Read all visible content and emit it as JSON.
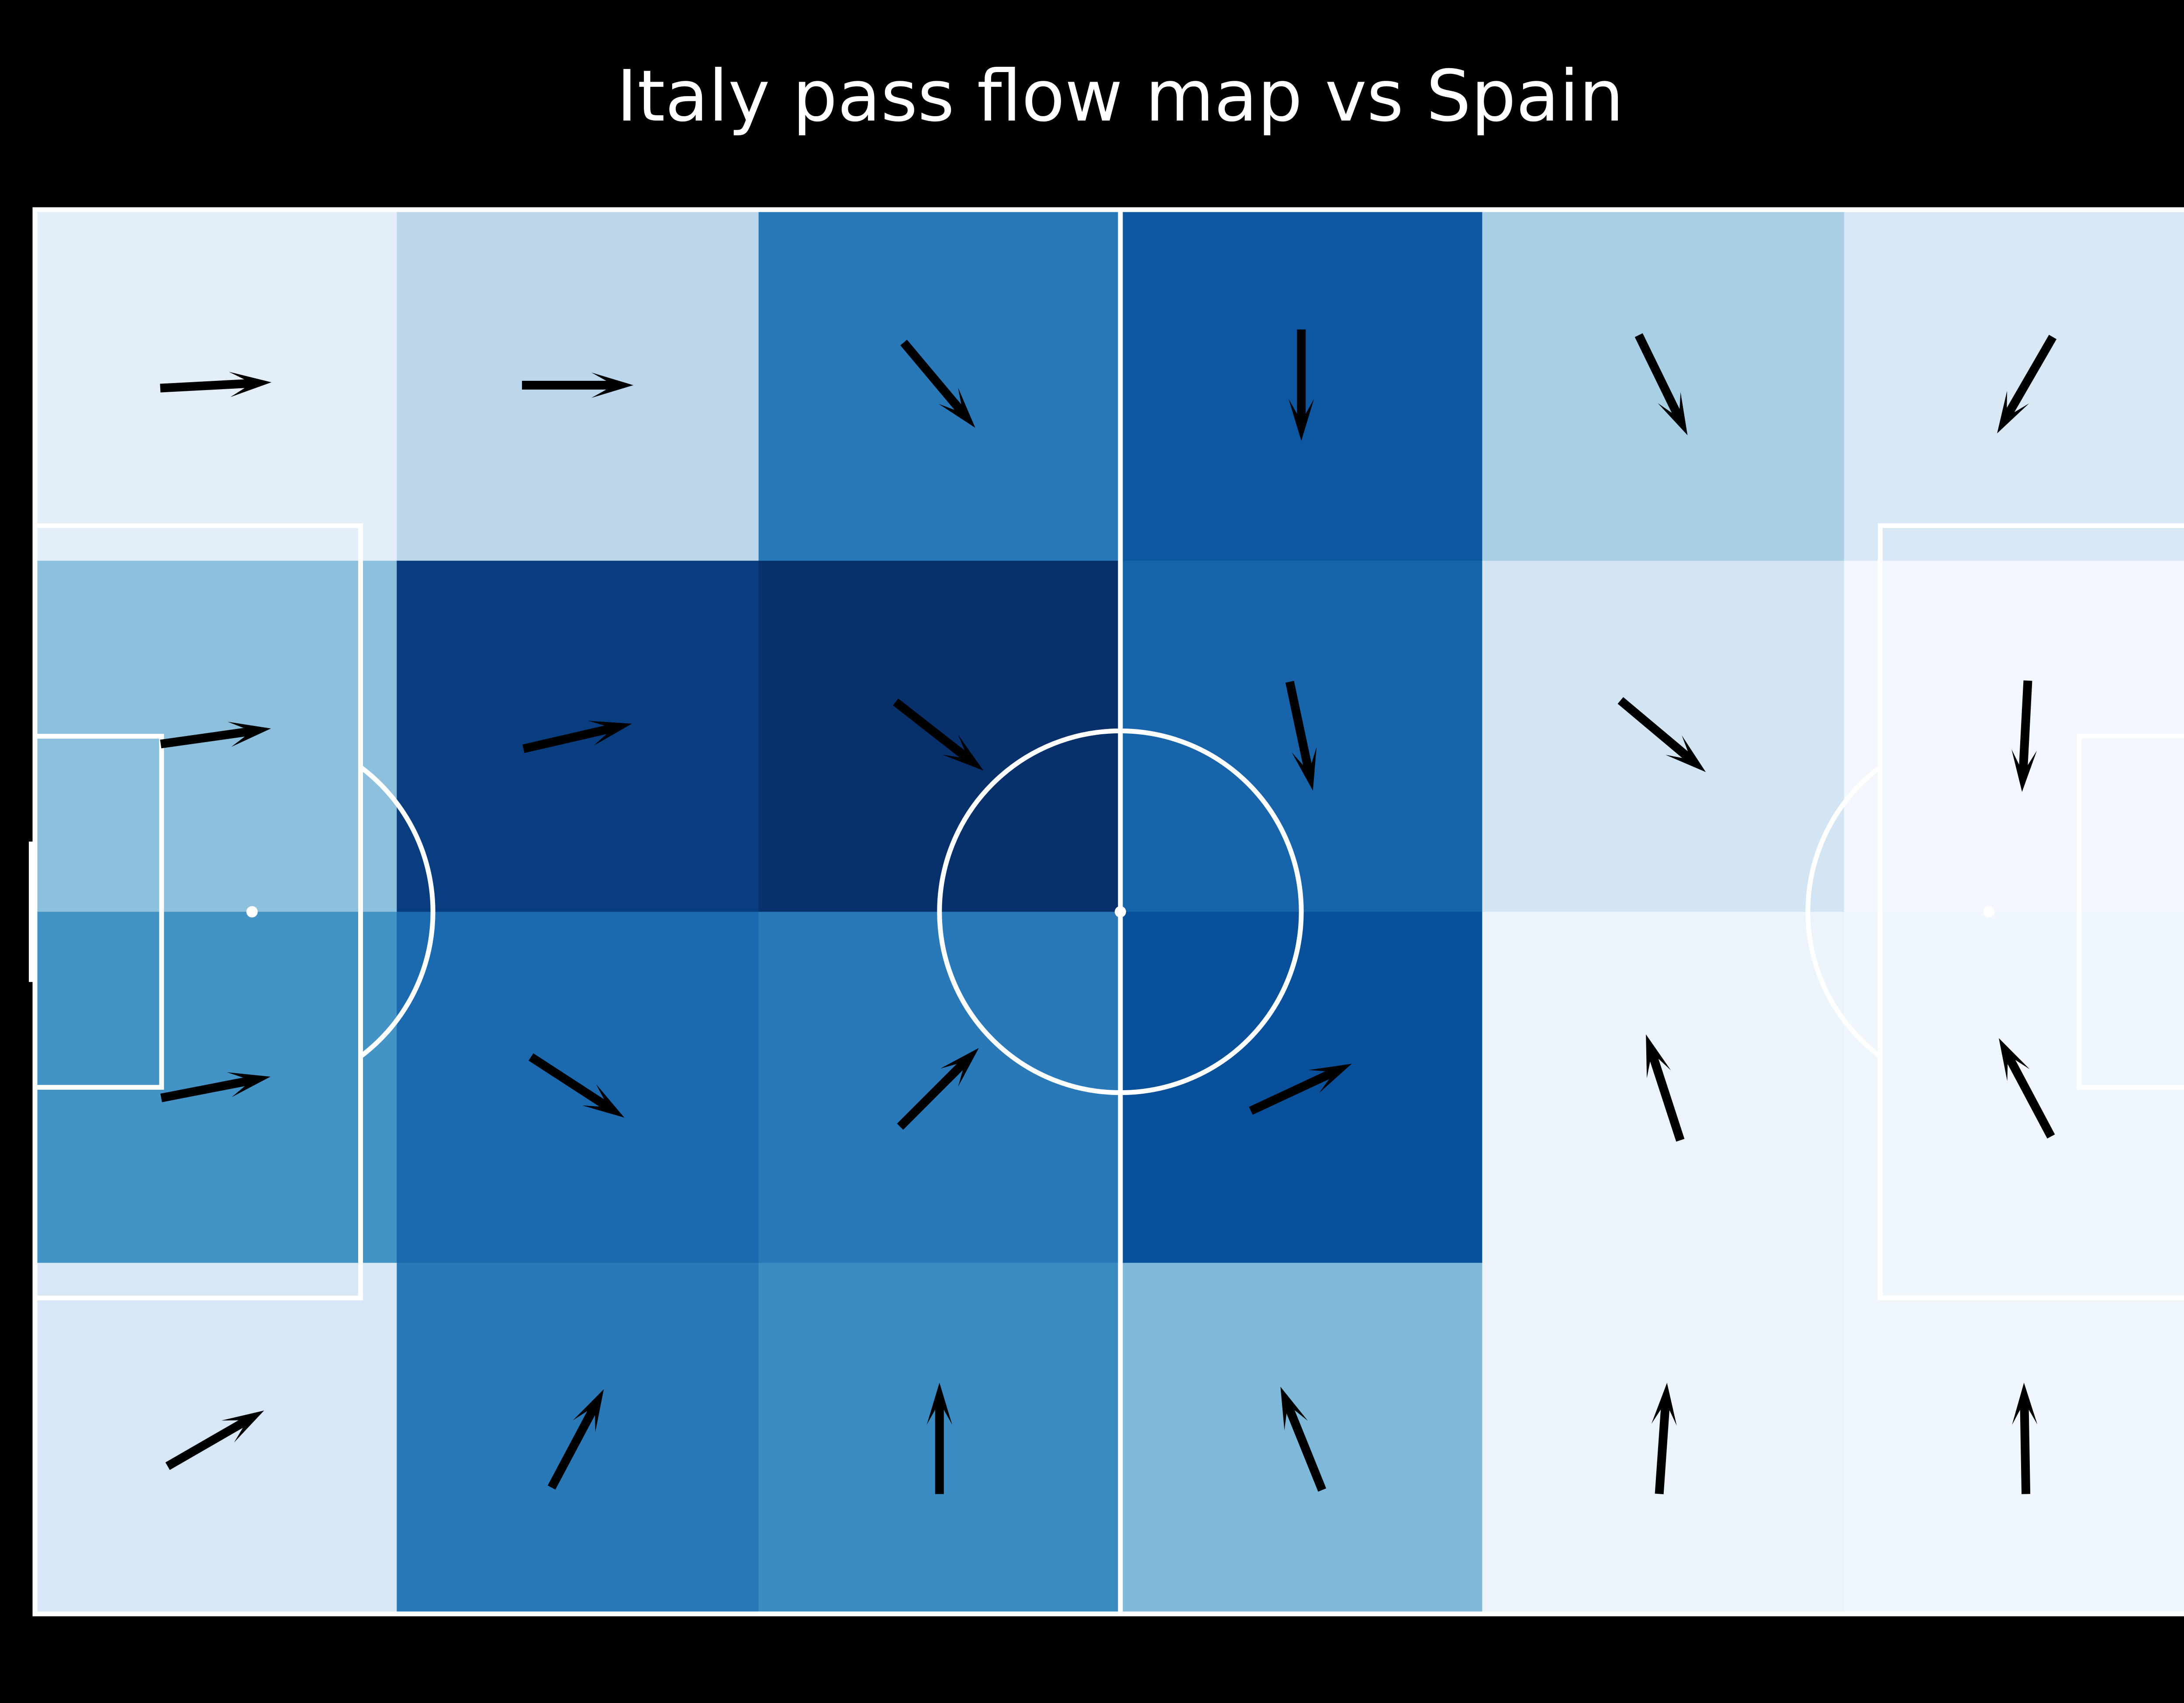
{
  "title": "Italy pass flow map vs Spain",
  "chart_data": {
    "type": "heatmap",
    "subtype": "pass-flow",
    "title": "Italy pass flow map vs Spain",
    "xlabel": "",
    "ylabel": "",
    "grid": false,
    "legend": "none",
    "colormap": "Blues",
    "pitch": {
      "length": 120,
      "width": 80,
      "line_color": "#ffffff",
      "background": "#000000"
    },
    "bins": {
      "columns": 6,
      "rows": 4
    },
    "cells": [
      {
        "col": 0,
        "row": 0,
        "intensity": 0.1,
        "arrow_angle_deg": 3
      },
      {
        "col": 1,
        "row": 0,
        "intensity": 0.28,
        "arrow_angle_deg": 0
      },
      {
        "col": 2,
        "row": 0,
        "intensity": 0.72,
        "arrow_angle_deg": -50
      },
      {
        "col": 3,
        "row": 0,
        "intensity": 0.85,
        "arrow_angle_deg": -90
      },
      {
        "col": 4,
        "row": 0,
        "intensity": 0.34,
        "arrow_angle_deg": -64
      },
      {
        "col": 5,
        "row": 0,
        "intensity": 0.15,
        "arrow_angle_deg": -120
      },
      {
        "col": 0,
        "row": 1,
        "intensity": 0.42,
        "arrow_angle_deg": 8
      },
      {
        "col": 1,
        "row": 1,
        "intensity": 0.95,
        "arrow_angle_deg": 13
      },
      {
        "col": 2,
        "row": 1,
        "intensity": 1.0,
        "arrow_angle_deg": -38
      },
      {
        "col": 3,
        "row": 1,
        "intensity": 0.8,
        "arrow_angle_deg": -78
      },
      {
        "col": 4,
        "row": 1,
        "intensity": 0.18,
        "arrow_angle_deg": -40
      },
      {
        "col": 5,
        "row": 1,
        "intensity": 0.03,
        "arrow_angle_deg": -93
      },
      {
        "col": 0,
        "row": 2,
        "intensity": 0.62,
        "arrow_angle_deg": 11
      },
      {
        "col": 1,
        "row": 2,
        "intensity": 0.78,
        "arrow_angle_deg": -33
      },
      {
        "col": 2,
        "row": 2,
        "intensity": 0.72,
        "arrow_angle_deg": 45
      },
      {
        "col": 3,
        "row": 2,
        "intensity": 0.88,
        "arrow_angle_deg": 25
      },
      {
        "col": 4,
        "row": 2,
        "intensity": 0.06,
        "arrow_angle_deg": 108
      },
      {
        "col": 5,
        "row": 2,
        "intensity": 0.04,
        "arrow_angle_deg": 118
      },
      {
        "col": 0,
        "row": 3,
        "intensity": 0.16,
        "arrow_angle_deg": 30
      },
      {
        "col": 1,
        "row": 3,
        "intensity": 0.72,
        "arrow_angle_deg": 62
      },
      {
        "col": 2,
        "row": 3,
        "intensity": 0.65,
        "arrow_angle_deg": 90
      },
      {
        "col": 3,
        "row": 3,
        "intensity": 0.45,
        "arrow_angle_deg": 112
      },
      {
        "col": 4,
        "row": 3,
        "intensity": 0.06,
        "arrow_angle_deg": 86
      },
      {
        "col": 5,
        "row": 3,
        "intensity": 0.04,
        "arrow_angle_deg": 91
      }
    ]
  }
}
